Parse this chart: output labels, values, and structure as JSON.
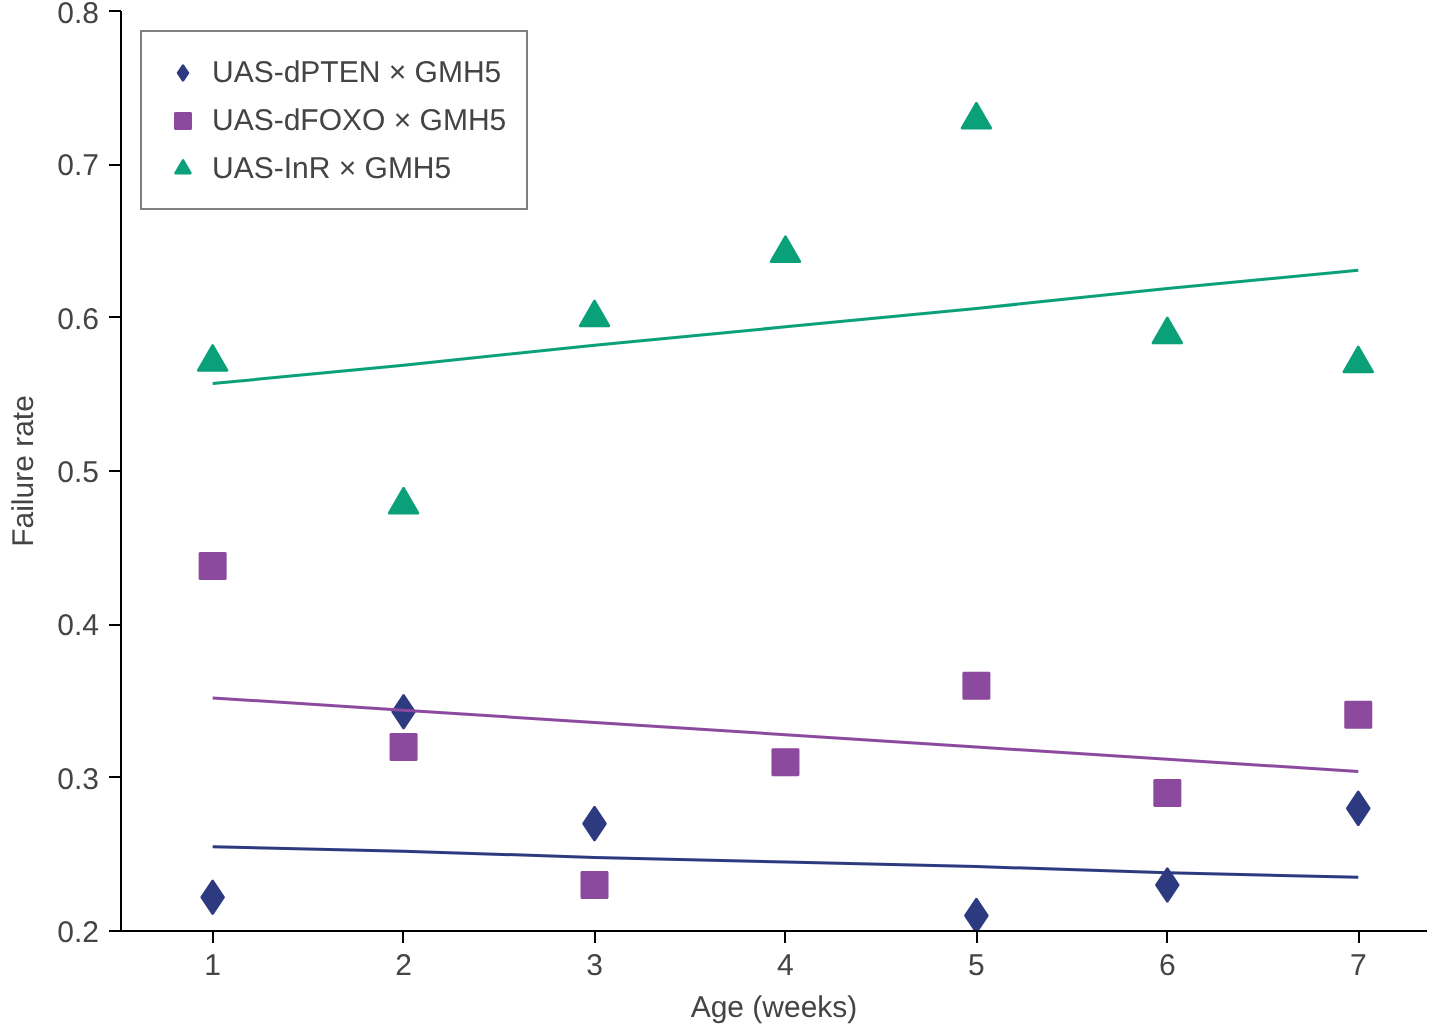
{
  "chart_data": {
    "type": "scatter",
    "xlabel": "Age (weeks)",
    "ylabel": "Failure rate",
    "x": [
      1,
      2,
      3,
      4,
      5,
      6,
      7
    ],
    "xlim": [
      0.52,
      7.36
    ],
    "ylim": [
      0.2,
      0.8
    ],
    "xticks": [
      1,
      2,
      3,
      4,
      5,
      6,
      7
    ],
    "yticks": [
      0.2,
      0.3,
      0.4,
      0.5,
      0.6,
      0.7,
      0.8
    ],
    "grid": false,
    "legend": "top left",
    "series": [
      {
        "name": "UAS-dPTEN × GMH5",
        "color": "#2e3a80",
        "marker": "diamond",
        "values": [
          0.222,
          0.343,
          0.27,
          null,
          0.21,
          0.23,
          0.28
        ]
      },
      {
        "name": "UAS-dFOXO × GMH5",
        "color": "#8c4a9e",
        "marker": "square",
        "values": [
          0.438,
          0.32,
          0.23,
          0.31,
          0.36,
          0.29,
          0.341
        ]
      },
      {
        "name": "UAS-InR × GMH5",
        "color": "#0aa07a",
        "marker": "triangle",
        "values": [
          0.571,
          0.478,
          0.6,
          0.642,
          0.729,
          0.589,
          0.57
        ]
      },
      {
        "type": "line",
        "color": "#2e3a80",
        "values": [
          0.255,
          0.252,
          0.248,
          0.245,
          0.242,
          0.238,
          0.235
        ]
      },
      {
        "type": "line",
        "color": "#8c4a9e",
        "values": [
          0.352,
          0.344,
          0.336,
          0.328,
          0.32,
          0.312,
          0.304
        ]
      },
      {
        "type": "line",
        "color": "#0aa07a",
        "values": [
          0.557,
          0.569,
          0.582,
          0.594,
          0.606,
          0.619,
          0.631
        ]
      }
    ]
  }
}
